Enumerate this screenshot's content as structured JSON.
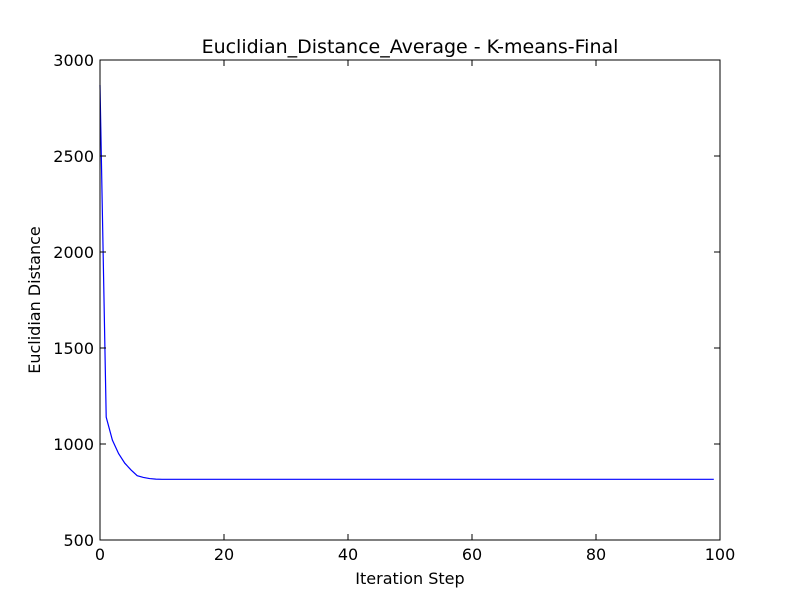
{
  "chart_data": {
    "type": "line",
    "title": "Euclidian_Distance_Average - K-means-Final",
    "xlabel": "Iteration Step",
    "ylabel": "Euclidian Distance",
    "xlim": [
      0,
      100
    ],
    "ylim": [
      500,
      3000
    ],
    "xticks": [
      0,
      20,
      40,
      60,
      80,
      100
    ],
    "yticks": [
      500,
      1000,
      1500,
      2000,
      2500,
      3000
    ],
    "grid": false,
    "legend": "none",
    "line_color": "#0000ff",
    "series": [
      {
        "x": [
          0,
          1,
          2,
          3,
          4,
          5,
          6,
          7,
          8,
          9,
          10,
          11,
          12,
          13,
          14,
          15,
          20,
          30,
          40,
          50,
          60,
          70,
          80,
          90,
          99
        ],
        "y": [
          2870,
          1140,
          1020,
          950,
          900,
          865,
          835,
          826,
          820,
          817,
          816,
          816,
          816,
          816,
          816,
          816,
          816,
          816,
          816,
          816,
          816,
          816,
          816,
          816,
          816
        ]
      }
    ]
  }
}
